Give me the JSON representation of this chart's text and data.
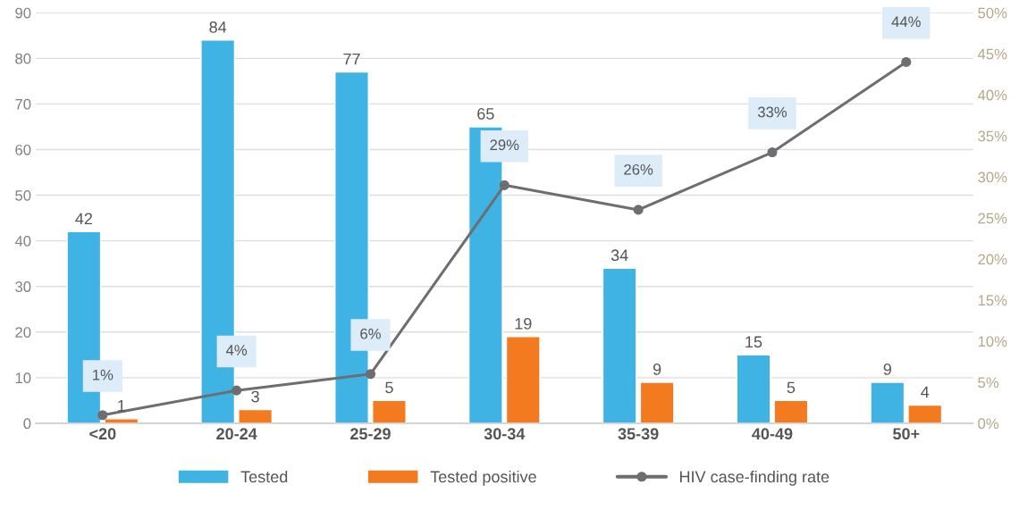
{
  "chart_data": {
    "type": "bar",
    "categories": [
      "<20",
      "20-24",
      "25-29",
      "30-34",
      "35-39",
      "40-49",
      "50+"
    ],
    "series": [
      {
        "name": "Tested",
        "color": "#3fb3e3",
        "values": [
          42,
          84,
          77,
          65,
          34,
          15,
          9
        ]
      },
      {
        "name": "Tested positive",
        "color": "#f47a20",
        "values": [
          1,
          3,
          5,
          19,
          9,
          5,
          4
        ]
      },
      {
        "name": "HIV case-finding rate",
        "type": "line",
        "axis": "y2",
        "color": "#6d6e71",
        "values": [
          1,
          4,
          6,
          29,
          26,
          33,
          44
        ],
        "value_labels": [
          "1%",
          "4%",
          "6%",
          "29%",
          "26%",
          "33%",
          "44%"
        ]
      }
    ],
    "ylim": [
      0,
      90
    ],
    "yticks": [
      0,
      10,
      20,
      30,
      40,
      50,
      60,
      70,
      80,
      90
    ],
    "y2lim": [
      0,
      50
    ],
    "y2ticks": [
      {
        "value": 0,
        "label": "0%"
      },
      {
        "value": 5,
        "label": "5%"
      },
      {
        "value": 10,
        "label": "10%"
      },
      {
        "value": 15,
        "label": "15%"
      },
      {
        "value": 20,
        "label": "20%"
      },
      {
        "value": 25,
        "label": "25%"
      },
      {
        "value": 30,
        "label": "30%"
      },
      {
        "value": 35,
        "label": "35%"
      },
      {
        "value": 40,
        "label": "40%"
      },
      {
        "value": 45,
        "label": "45%"
      },
      {
        "value": 50,
        "label": "50%"
      }
    ],
    "data_labels": true,
    "grid": "y",
    "legend": "bottom",
    "marker": "circle",
    "line_style": "solid"
  }
}
